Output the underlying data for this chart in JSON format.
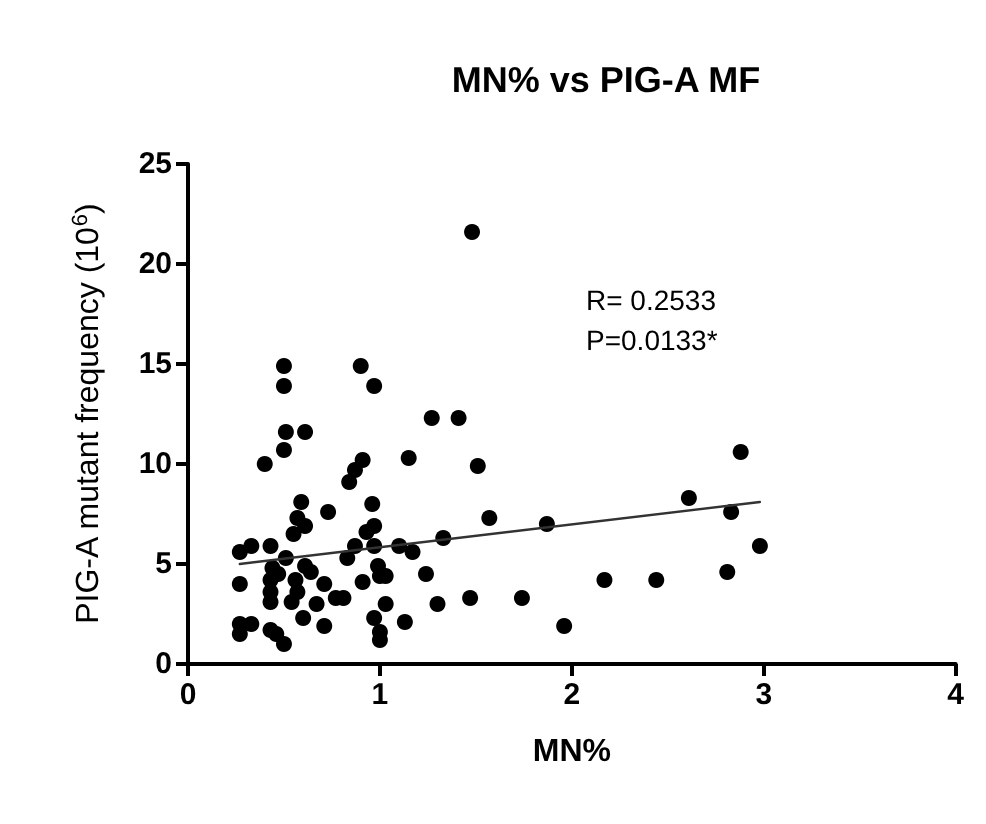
{
  "chart_data": {
    "type": "scatter",
    "title": "MN% vs PIG-A MF",
    "xlabel": "MN%",
    "ylabel": "PIG-A mutant frequency (10$^{6}$)",
    "annotations": [
      "R= 0.2533",
      "P=0.0133*"
    ],
    "series": [
      {
        "color": "#000000",
        "x": [
          0.51,
          0.61,
          0.5,
          0.4,
          1.27,
          1.41,
          1.15,
          1.51,
          0.91,
          0.87,
          0.84,
          0.59,
          0.73,
          0.96,
          0.57,
          0.61,
          0.55,
          0.97,
          0.93,
          1.57,
          1.87,
          1.33,
          0.27,
          0.33,
          0.43,
          0.87,
          0.97,
          1.1,
          1.17,
          0.83,
          0.51,
          0.99,
          1.0,
          0.61,
          0.64,
          0.44,
          0.47,
          0.27,
          0.43,
          0.43,
          0.43,
          0.56,
          0.57,
          0.54,
          0.67,
          0.71,
          0.81,
          0.77,
          0.91,
          1.03,
          1.03,
          1.24,
          1.3,
          1.47,
          1.74,
          0.6,
          0.71,
          0.97,
          1.0,
          1.0,
          1.13,
          0.27,
          0.27,
          0.33,
          0.43,
          0.46,
          0.5,
          2.88,
          2.61,
          2.83,
          2.98,
          2.81,
          2.44,
          2.17,
          1.96,
          1.48,
          0.5,
          0.5,
          0.9,
          0.97
        ],
        "values": [
          11.6,
          11.6,
          10.7,
          10.0,
          12.3,
          12.3,
          10.3,
          9.9,
          10.2,
          9.7,
          9.1,
          8.1,
          7.6,
          8.0,
          7.3,
          6.9,
          6.5,
          6.9,
          6.6,
          7.3,
          7.0,
          6.3,
          5.6,
          5.9,
          5.9,
          5.9,
          5.9,
          5.9,
          5.6,
          5.3,
          5.3,
          4.9,
          4.4,
          4.9,
          4.6,
          4.8,
          4.5,
          4.0,
          4.2,
          3.6,
          3.1,
          4.2,
          3.6,
          3.1,
          3.0,
          4.0,
          3.3,
          3.3,
          4.1,
          4.4,
          3.0,
          4.5,
          3.0,
          3.3,
          3.3,
          2.3,
          1.9,
          2.3,
          1.6,
          1.2,
          2.1,
          2.0,
          1.5,
          2.0,
          1.7,
          1.5,
          1.0,
          10.6,
          8.3,
          7.6,
          5.9,
          4.6,
          4.2,
          4.2,
          1.9,
          21.6,
          14.9,
          13.9,
          14.9,
          13.9
        ]
      },
      {
        "type": "line",
        "color": "#333333",
        "marker": "none",
        "x": [
          0.27,
          2.98
        ],
        "values": [
          5.0,
          8.1
        ]
      }
    ],
    "xlim": [
      0,
      4
    ],
    "xticks": [
      0,
      1,
      2,
      3,
      4
    ],
    "ylim": [
      0,
      25
    ],
    "yticks": [
      0,
      5,
      10,
      15,
      20,
      25
    ],
    "grid": false,
    "marker": "circle"
  }
}
